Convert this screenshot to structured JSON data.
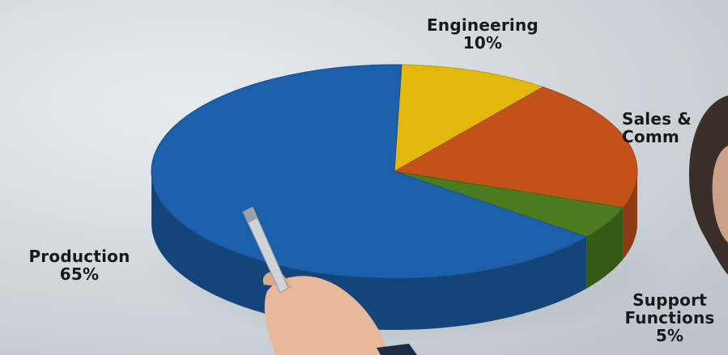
{
  "chart_data": {
    "type": "pie",
    "style": "3d",
    "title": "",
    "slices": [
      {
        "label_line1": "Production",
        "label_line2": "",
        "value": 65,
        "value_text": "65%",
        "color": "#1c5faa"
      },
      {
        "label_line1": "Engineering",
        "label_line2": "",
        "value": 10,
        "value_text": "10%",
        "color": "#e3b80d"
      },
      {
        "label_line1": "Sales &",
        "label_line2": "Comm",
        "value": 20,
        "value_text": "",
        "color": "#c2521a"
      },
      {
        "label_line1": "Support",
        "label_line2": "Functions",
        "value": 5,
        "value_text": "5%",
        "color": "#4a7c1f"
      }
    ]
  }
}
